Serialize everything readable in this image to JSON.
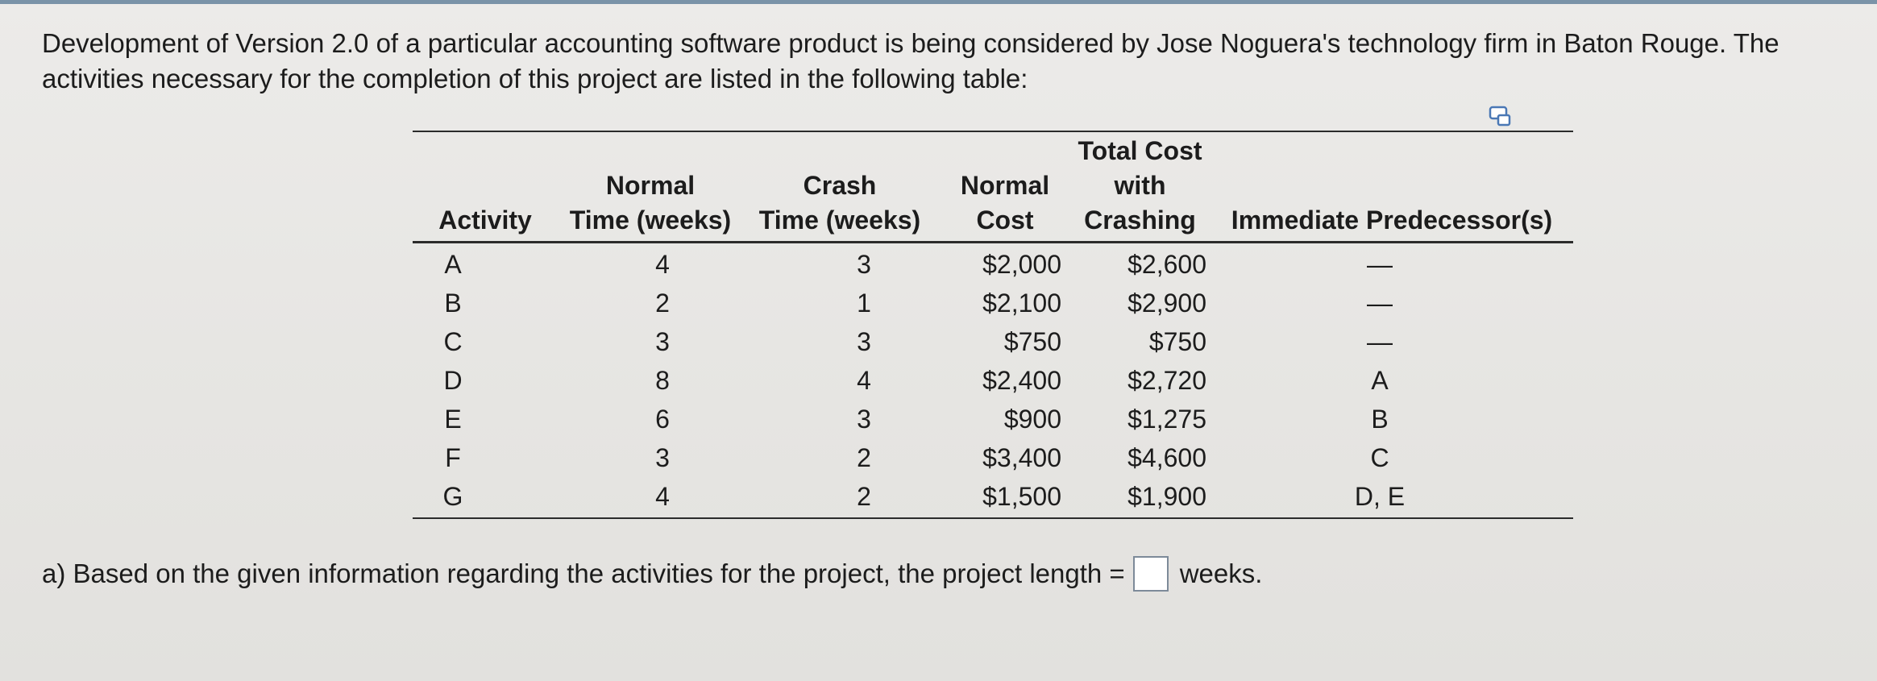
{
  "intro_text": "Development of Version 2.0 of a particular accounting software product is being considered by Jose Noguera's technology firm in Baton Rouge. The activities necessary for the completion of this project are listed in the following table:",
  "table": {
    "headers": {
      "activity": [
        "Activity"
      ],
      "normal_time": [
        "Normal",
        "Time (weeks)"
      ],
      "crash_time": [
        "Crash",
        "Time (weeks)"
      ],
      "normal_cost": [
        "Normal",
        "Cost"
      ],
      "total_cost": [
        "Total Cost",
        "with",
        "Crashing"
      ],
      "predecessors": [
        "Immediate Predecessor(s)"
      ]
    },
    "rows": [
      {
        "activity": "A",
        "normal_time": "4",
        "crash_time": "3",
        "normal_cost": "$2,000",
        "total_cost": "$2,600",
        "predecessors": "—"
      },
      {
        "activity": "B",
        "normal_time": "2",
        "crash_time": "1",
        "normal_cost": "$2,100",
        "total_cost": "$2,900",
        "predecessors": "—"
      },
      {
        "activity": "C",
        "normal_time": "3",
        "crash_time": "3",
        "normal_cost": "$750",
        "total_cost": "$750",
        "predecessors": "—"
      },
      {
        "activity": "D",
        "normal_time": "8",
        "crash_time": "4",
        "normal_cost": "$2,400",
        "total_cost": "$2,720",
        "predecessors": "A"
      },
      {
        "activity": "E",
        "normal_time": "6",
        "crash_time": "3",
        "normal_cost": "$900",
        "total_cost": "$1,275",
        "predecessors": "B"
      },
      {
        "activity": "F",
        "normal_time": "3",
        "crash_time": "2",
        "normal_cost": "$3,400",
        "total_cost": "$4,600",
        "predecessors": "C"
      },
      {
        "activity": "G",
        "normal_time": "4",
        "crash_time": "2",
        "normal_cost": "$1,500",
        "total_cost": "$1,900",
        "predecessors": "D, E"
      }
    ]
  },
  "question": {
    "prefix": "a) Based on the given information regarding the activities for the project, the project length =",
    "answer_value": "",
    "suffix": "weeks."
  },
  "icons": {
    "copy": "copy-table-icon"
  }
}
